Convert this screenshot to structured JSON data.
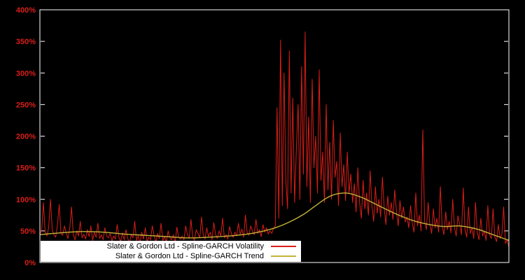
{
  "chart_data": {
    "type": "line",
    "title": "",
    "xlabel": "",
    "ylabel": "",
    "grid": false,
    "background_color": "#000000",
    "border_color": "#ffffff",
    "tick_label_color": "#d91e18",
    "ylim": [
      0,
      400
    ],
    "yticks": [
      0,
      50,
      100,
      150,
      200,
      250,
      300,
      350,
      400
    ],
    "ytick_labels": [
      "0%",
      "50%",
      "100%",
      "150%",
      "200%",
      "250%",
      "300%",
      "350%",
      "400%"
    ],
    "xtick_labels": [],
    "legend_position": "bottom-left",
    "series": [
      {
        "name": "Slater & Gordon Ltd - Spline-GARCH Volatility",
        "color": "#d91e18",
        "style": "spiky-line",
        "unit": "percent",
        "values": [
          45,
          50,
          95,
          48,
          42,
          55,
          100,
          52,
          44,
          40,
          60,
          92,
          46,
          43,
          58,
          47,
          38,
          55,
          88,
          44,
          36,
          50,
          42,
          65,
          39,
          45,
          37,
          52,
          41,
          58,
          35,
          48,
          40,
          62,
          38,
          44,
          36,
          55,
          42,
          39,
          46,
          34,
          42,
          37,
          60,
          40,
          33,
          47,
          36,
          52,
          38,
          31,
          44,
          39,
          65,
          35,
          42,
          30,
          48,
          37,
          55,
          33,
          40,
          36,
          58,
          43,
          32,
          46,
          38,
          62,
          35,
          41,
          33,
          50,
          39,
          36,
          44,
          31,
          56,
          40,
          37,
          42,
          36,
          58,
          44,
          38,
          68,
          40,
          35,
          52,
          46,
          39,
          72,
          43,
          37,
          55,
          41,
          48,
          36,
          63,
          45,
          38,
          50,
          42,
          70,
          39,
          44,
          37,
          57,
          46,
          40,
          48,
          42,
          62,
          45,
          53,
          40,
          75,
          47,
          43,
          58,
          50,
          44,
          68,
          46,
          52,
          41,
          60,
          48,
          55,
          45,
          50,
          46,
          54,
          58,
          245,
          70,
          352,
          90,
          300,
          130,
          85,
          335,
          110,
          260,
          95,
          180,
          250,
          100,
          310,
          140,
          365,
          120,
          230,
          95,
          290,
          150,
          200,
          110,
          305,
          130,
          175,
          95,
          250,
          115,
          190,
          100,
          225,
          135,
          160,
          90,
          205,
          120,
          155,
          98,
          175,
          110,
          140,
          95,
          125,
          80,
          150,
          95,
          70,
          130,
          85,
          110,
          75,
          145,
          90,
          65,
          120,
          78,
          100,
          72,
          135,
          88,
          60,
          105,
          75,
          95,
          68,
          115,
          80,
          58,
          98,
          70,
          88,
          64,
          72,
          55,
          90,
          62,
          48,
          110,
          58,
          75,
          50,
          210,
          65,
          52,
          95,
          60,
          46,
          85,
          55,
          70,
          48,
          120,
          58,
          44,
          80,
          52,
          65,
          47,
          100,
          56,
          42,
          74,
          60,
          44,
          118,
          52,
          40,
          88,
          46,
          55,
          38,
          95,
          48,
          36,
          70,
          42,
          50,
          35,
          90,
          44,
          38,
          85,
          40,
          33,
          60,
          38,
          45,
          88,
          30,
          36,
          24
        ]
      },
      {
        "name": "Slater & Gordon Ltd - Spline-GARCH Trend",
        "color": "#c3b337",
        "style": "smooth-line",
        "unit": "percent",
        "keypoints": [
          [
            0,
            44
          ],
          [
            12,
            47
          ],
          [
            24,
            49
          ],
          [
            36,
            48
          ],
          [
            48,
            45
          ],
          [
            60,
            43
          ],
          [
            72,
            41
          ],
          [
            84,
            39
          ],
          [
            96,
            40
          ],
          [
            108,
            42
          ],
          [
            118,
            45
          ],
          [
            126,
            49
          ],
          [
            134,
            55
          ],
          [
            142,
            64
          ],
          [
            150,
            76
          ],
          [
            156,
            88
          ],
          [
            162,
            100
          ],
          [
            166,
            106
          ],
          [
            170,
            109
          ],
          [
            174,
            110
          ],
          [
            178,
            108
          ],
          [
            184,
            102
          ],
          [
            190,
            94
          ],
          [
            198,
            83
          ],
          [
            206,
            73
          ],
          [
            214,
            65
          ],
          [
            222,
            60
          ],
          [
            230,
            57
          ],
          [
            238,
            58
          ],
          [
            244,
            56
          ],
          [
            250,
            52
          ],
          [
            256,
            46
          ],
          [
            262,
            40
          ],
          [
            267,
            35
          ]
        ]
      }
    ]
  },
  "legend": {
    "volatility_label": "Slater & Gordon Ltd - Spline-GARCH Volatility",
    "trend_label": "Slater & Gordon Ltd - Spline-GARCH Trend"
  }
}
